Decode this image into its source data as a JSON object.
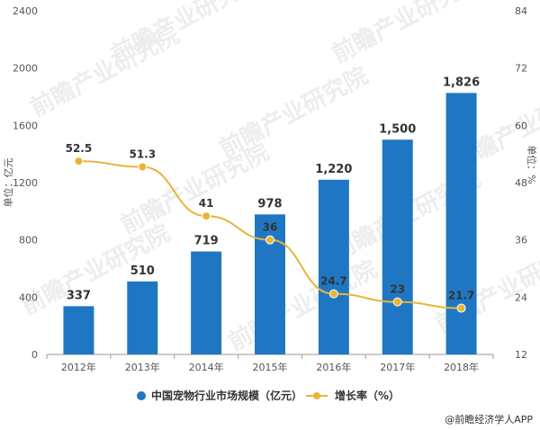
{
  "chart_data": {
    "type": "bar+line",
    "categories": [
      "2012年",
      "2013年",
      "2014年",
      "2015年",
      "2016年",
      "2017年",
      "2018年"
    ],
    "series": [
      {
        "name": "中国宠物行业市场规模（亿元）",
        "type": "bar",
        "axis": "left",
        "values": [
          337,
          510,
          719,
          978,
          1220,
          1500,
          1826
        ],
        "color": "#1f77c4"
      },
      {
        "name": "增长率（%）",
        "type": "line",
        "axis": "right",
        "values": [
          52.5,
          51.3,
          41,
          36,
          24.7,
          23,
          21.7
        ],
        "color": "#e8b53a"
      }
    ],
    "bar_labels": [
      "337",
      "510",
      "719",
      "978",
      "1,220",
      "1,500",
      "1,826"
    ],
    "rate_labels": [
      "52.5",
      "51.3",
      "41",
      "36",
      "24.7",
      "23",
      "21.7"
    ],
    "ylabel_left": "单位：亿元",
    "ylabel_right": "单位：%",
    "ylim_left": [
      0,
      2400
    ],
    "yticks_left": [
      0,
      400,
      800,
      1200,
      1600,
      2000,
      2400
    ],
    "ylim_right": [
      12,
      84
    ],
    "yticks_right": [
      12,
      24,
      36,
      48,
      60,
      72,
      84
    ],
    "grid": false,
    "legend_position": "bottom"
  },
  "watermark": "前瞻产业研究院",
  "source": "@前瞻经济学人APP"
}
